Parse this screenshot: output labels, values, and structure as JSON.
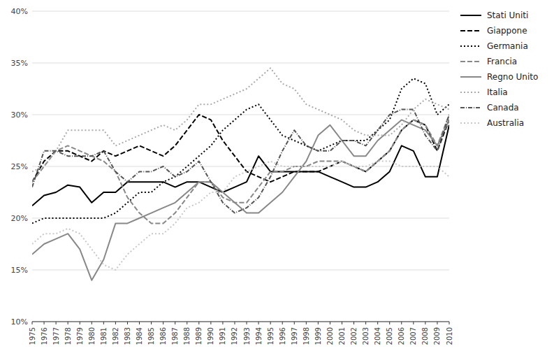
{
  "chart_data": {
    "type": "line",
    "x": [
      1975,
      1976,
      1977,
      1978,
      1979,
      1980,
      1981,
      1982,
      1983,
      1984,
      1985,
      1986,
      1987,
      1988,
      1989,
      1990,
      1991,
      1992,
      1993,
      1994,
      1995,
      1996,
      1997,
      1998,
      1999,
      2000,
      2001,
      2002,
      2003,
      2004,
      2005,
      2006,
      2007,
      2008,
      2009,
      2010
    ],
    "xlim": [
      1975,
      2010
    ],
    "xticks": [
      1975,
      1976,
      1977,
      1978,
      1979,
      1980,
      1981,
      1982,
      1983,
      1984,
      1985,
      1986,
      1987,
      1988,
      1989,
      1990,
      1991,
      1992,
      1993,
      1994,
      1995,
      1996,
      1997,
      1998,
      1999,
      2000,
      2001,
      2002,
      2003,
      2004,
      2005,
      2006,
      2007,
      2008,
      2009,
      2010
    ],
    "ylim": [
      10,
      40
    ],
    "yticks": [
      {
        "value": 10,
        "label": "10%"
      },
      {
        "value": 15,
        "label": "15%"
      },
      {
        "value": 20,
        "label": "20%"
      },
      {
        "value": 25,
        "label": "25%"
      },
      {
        "value": 30,
        "label": "30%"
      },
      {
        "value": 35,
        "label": "35%"
      },
      {
        "value": 40,
        "label": "40%"
      }
    ],
    "grid": true,
    "legend": "right",
    "series": [
      {
        "name": "Stati Uniti",
        "color": "#000000",
        "line_style": "solid",
        "values": [
          21.2,
          22.2,
          22.5,
          23.2,
          23.0,
          21.5,
          22.5,
          22.5,
          23.5,
          23.5,
          23.5,
          23.5,
          23.0,
          23.5,
          23.5,
          23.0,
          22.5,
          23.0,
          23.5,
          26.0,
          24.5,
          24.5,
          24.5,
          24.5,
          24.5,
          24.0,
          23.5,
          23.0,
          23.0,
          23.5,
          24.5,
          27.0,
          26.5,
          24.0,
          24.0,
          29.0
        ]
      },
      {
        "name": "Giappone",
        "color": "#000000",
        "line_style": "dashed",
        "values": [
          23.5,
          25.5,
          26.5,
          26.5,
          26.0,
          25.5,
          26.5,
          26.0,
          26.5,
          27.0,
          26.5,
          26.0,
          27.0,
          28.5,
          30.0,
          29.5,
          27.5,
          26.0,
          24.5,
          24.0,
          23.5,
          24.0,
          24.5,
          24.5,
          24.5,
          25.0,
          25.5,
          25.0,
          24.5,
          25.5,
          26.5,
          28.5,
          29.5,
          29.0,
          26.5,
          29.5
        ]
      },
      {
        "name": "Germania",
        "color": "#000000",
        "line_style": "dotted",
        "values": [
          19.5,
          20.0,
          20.0,
          20.0,
          20.0,
          20.0,
          20.0,
          20.5,
          21.5,
          22.5,
          22.5,
          23.5,
          24.0,
          25.0,
          26.0,
          27.0,
          28.5,
          29.5,
          30.5,
          31.0,
          29.5,
          28.0,
          27.5,
          27.0,
          26.5,
          27.0,
          27.5,
          27.5,
          27.5,
          28.5,
          29.5,
          32.5,
          33.5,
          33.0,
          30.0,
          31.0
        ]
      },
      {
        "name": "Francia",
        "color": "#888888",
        "line_style": "dashed",
        "values": [
          23.5,
          25.0,
          26.5,
          27.0,
          26.5,
          26.0,
          25.5,
          24.5,
          22.0,
          20.5,
          19.5,
          19.5,
          20.5,
          22.0,
          23.5,
          23.5,
          22.0,
          21.5,
          21.5,
          23.0,
          24.5,
          24.5,
          25.0,
          25.0,
          25.5,
          25.5,
          25.5,
          25.0,
          24.5,
          25.5,
          26.5,
          28.5,
          29.5,
          29.0,
          27.0,
          30.0
        ]
      },
      {
        "name": "Regno Unito",
        "color": "#888888",
        "line_style": "solid",
        "values": [
          16.5,
          17.5,
          18.0,
          18.5,
          17.0,
          14.0,
          16.0,
          19.5,
          19.5,
          20.0,
          20.5,
          21.0,
          21.5,
          22.5,
          23.5,
          23.5,
          22.5,
          21.5,
          20.5,
          20.5,
          21.5,
          22.5,
          24.0,
          25.5,
          28.0,
          29.0,
          27.5,
          26.0,
          26.0,
          27.5,
          28.5,
          29.5,
          29.0,
          28.5,
          27.0,
          29.5
        ]
      },
      {
        "name": "Italia",
        "color": "#aaaaaa",
        "line_style": "dotted",
        "values": [
          24.5,
          25.0,
          26.5,
          28.5,
          28.5,
          28.5,
          28.5,
          27.0,
          27.5,
          28.0,
          28.5,
          29.0,
          28.5,
          29.5,
          31.0,
          31.0,
          31.5,
          32.0,
          32.5,
          33.5,
          34.5,
          33.0,
          32.5,
          31.0,
          30.5,
          30.0,
          29.5,
          28.5,
          28.0,
          28.0,
          28.0,
          29.0,
          30.5,
          31.5,
          31.0,
          30.5
        ]
      },
      {
        "name": "Canada",
        "color": "#555555",
        "line_style": "dashdot",
        "values": [
          23.0,
          26.5,
          26.5,
          26.0,
          26.0,
          26.0,
          26.5,
          24.5,
          23.5,
          24.5,
          24.5,
          25.0,
          24.0,
          24.5,
          25.5,
          23.5,
          21.5,
          20.5,
          21.0,
          22.0,
          24.0,
          26.5,
          28.5,
          27.0,
          26.5,
          26.5,
          27.5,
          27.5,
          27.0,
          28.5,
          30.0,
          30.5,
          30.5,
          28.0,
          26.5,
          30.0
        ]
      },
      {
        "name": "Australia",
        "color": "#c8c8c8",
        "line_style": "dotted",
        "values": [
          17.5,
          18.5,
          18.5,
          19.0,
          18.5,
          17.0,
          15.5,
          15.0,
          16.5,
          17.5,
          18.5,
          18.5,
          19.5,
          21.0,
          21.5,
          22.5,
          22.5,
          24.0,
          24.5,
          25.0,
          25.5,
          25.0,
          25.0,
          25.0,
          25.0,
          25.0,
          25.5,
          25.0,
          25.0,
          25.5,
          25.5,
          25.0,
          25.0,
          25.0,
          25.0,
          24.0
        ]
      }
    ]
  }
}
